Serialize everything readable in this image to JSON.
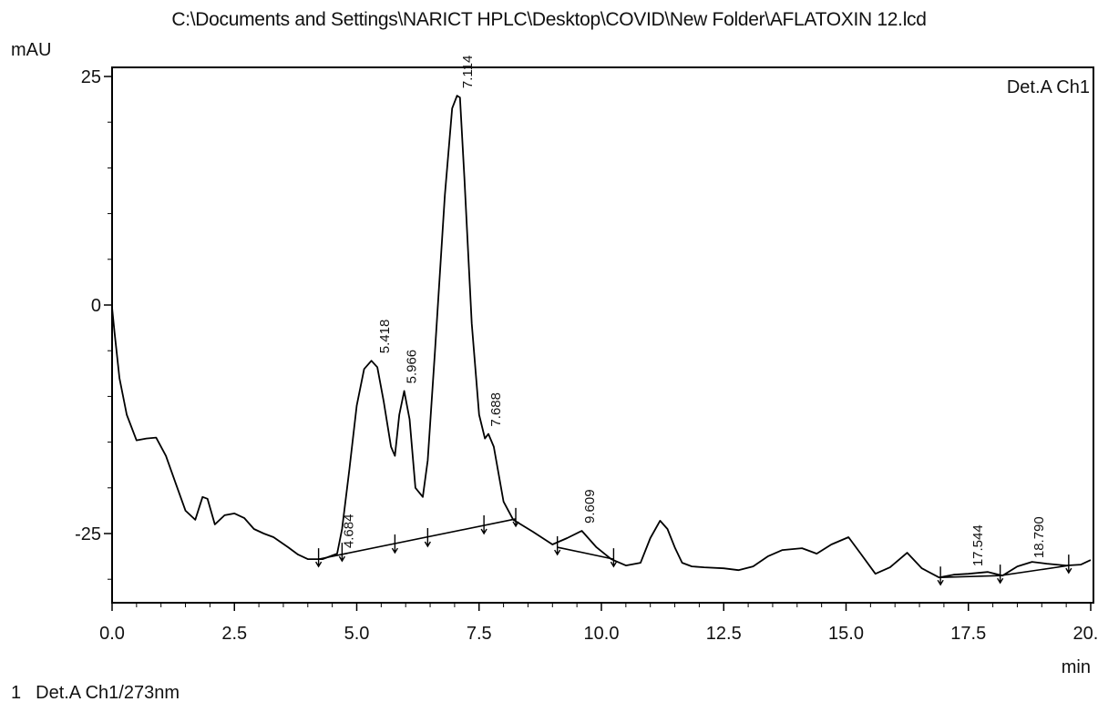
{
  "header": {
    "file_path": "C:\\Documents and Settings\\NARICT HPLC\\Desktop\\COVID\\New Folder\\AFLATOXIN 12.lcd"
  },
  "chart_data": {
    "type": "line",
    "title": "C:\\Documents and Settings\\NARICT HPLC\\Desktop\\COVID\\New Folder\\AFLATOXIN 12.lcd",
    "ylabel": "mAU",
    "xlabel": "min",
    "detector_label": "Det.A Ch1",
    "legend": {
      "index": "1",
      "text": "Det.A Ch1/273nm",
      "placement": "bottom-left"
    },
    "xlim": [
      0,
      20
    ],
    "ylim": [
      -32.5,
      26
    ],
    "x_ticks": [
      0,
      2.5,
      5,
      7.5,
      10,
      12.5,
      15,
      17.5,
      20
    ],
    "x_tick_labels": [
      "0.0",
      "2.5",
      "5.0",
      "7.5",
      "10.0",
      "12.5",
      "15.0",
      "17.5",
      "20.0"
    ],
    "y_ticks": [
      -25,
      0,
      25
    ],
    "y_tick_labels": [
      "-25",
      "0",
      "25"
    ],
    "grid": false,
    "series": [
      {
        "x": [
          0,
          0.05,
          0.15,
          0.3,
          0.5,
          0.7,
          0.9,
          1.1,
          1.3,
          1.5,
          1.7,
          1.85,
          1.95,
          2.1,
          2.3,
          2.5,
          2.7,
          2.9,
          3.1,
          3.3,
          3.6,
          3.8,
          4.0,
          4.3,
          4.6,
          4.7,
          4.85,
          5.0,
          5.15,
          5.3,
          5.42,
          5.55,
          5.7,
          5.78,
          5.87,
          5.97,
          6.08,
          6.2,
          6.35,
          6.45,
          6.6,
          6.8,
          6.95,
          7.05,
          7.11,
          7.2,
          7.35,
          7.5,
          7.62,
          7.69,
          7.8,
          8.0,
          8.2,
          8.6,
          9.0,
          9.3,
          9.6,
          9.9,
          10.2,
          10.5,
          10.8,
          11.0,
          11.2,
          11.35,
          11.5,
          11.65,
          11.85,
          12.1,
          12.5,
          12.8,
          13.1,
          13.4,
          13.7,
          14.1,
          14.4,
          14.7,
          15.05,
          15.3,
          15.6,
          15.9,
          16.25,
          16.55,
          16.9,
          17.2,
          17.5,
          17.9,
          18.2,
          18.5,
          18.8,
          19.1,
          19.5,
          19.8,
          20.0
        ],
        "y": [
          -0.3,
          -3,
          -8,
          -12,
          -14.8,
          -14.6,
          -14.5,
          -16.5,
          -19.5,
          -22.5,
          -23.5,
          -21,
          -21.2,
          -24,
          -23,
          -22.8,
          -23.3,
          -24.5,
          -25,
          -25.4,
          -26.5,
          -27.3,
          -27.8,
          -27.8,
          -27.2,
          -24.5,
          -18,
          -11,
          -7,
          -6.1,
          -6.8,
          -10.5,
          -15.5,
          -16.5,
          -12,
          -9.4,
          -12.5,
          -20,
          -21,
          -17,
          -5,
          12,
          21.5,
          22.9,
          22.7,
          14,
          -2,
          -12,
          -14.6,
          -14.1,
          -15.5,
          -21.5,
          -23.5,
          -24.8,
          -26.2,
          -25.5,
          -24.7,
          -26.5,
          -27.8,
          -28.5,
          -28.2,
          -25.5,
          -23.6,
          -24.5,
          -26.5,
          -28.2,
          -28.6,
          -28.7,
          -28.8,
          -29,
          -28.6,
          -27.5,
          -26.8,
          -26.6,
          -27.2,
          -26.2,
          -25.4,
          -27.2,
          -29.4,
          -28.7,
          -27.1,
          -28.8,
          -29.8,
          -29.5,
          -29.4,
          -29.2,
          -29.6,
          -28.6,
          -28.1,
          -28.3,
          -28.5,
          -28.4,
          -27.9
        ]
      }
    ],
    "peaks": [
      {
        "rt": "4.684",
        "x": 4.684,
        "y": -27.4
      },
      {
        "rt": "5.418",
        "x": 5.418,
        "y": -6.1
      },
      {
        "rt": "5.966",
        "x": 5.966,
        "y": -9.4
      },
      {
        "rt": "7.114",
        "x": 7.114,
        "y": 22.9
      },
      {
        "rt": "7.688",
        "x": 7.688,
        "y": -14.1
      },
      {
        "rt": "9.609",
        "x": 9.609,
        "y": -24.7
      },
      {
        "rt": "17.544",
        "x": 17.544,
        "y": -29.4
      },
      {
        "rt": "18.790",
        "x": 18.79,
        "y": -28.5
      }
    ],
    "baselines": [
      {
        "x": [
          4.22,
          8.25
        ],
        "y": [
          -27.8,
          -23.4
        ]
      },
      {
        "x": [
          9.1,
          10.25
        ],
        "y": [
          -26.5,
          -27.8
        ]
      },
      {
        "x": [
          16.93,
          18.15
        ],
        "y": [
          -29.8,
          -29.6
        ]
      },
      {
        "x": [
          18.15,
          19.55
        ],
        "y": [
          -29.6,
          -28.5
        ]
      }
    ],
    "markers": [
      {
        "x": 4.22,
        "y": -27.8
      },
      {
        "x": 4.7,
        "y": -27.2
      },
      {
        "x": 5.78,
        "y": -26.3
      },
      {
        "x": 6.45,
        "y": -25.6
      },
      {
        "x": 7.6,
        "y": -24.2
      },
      {
        "x": 8.25,
        "y": -23.4
      },
      {
        "x": 9.1,
        "y": -26.5
      },
      {
        "x": 10.25,
        "y": -27.8
      },
      {
        "x": 16.93,
        "y": -29.8
      },
      {
        "x": 18.15,
        "y": -29.6
      },
      {
        "x": 19.55,
        "y": -28.5
      }
    ]
  }
}
